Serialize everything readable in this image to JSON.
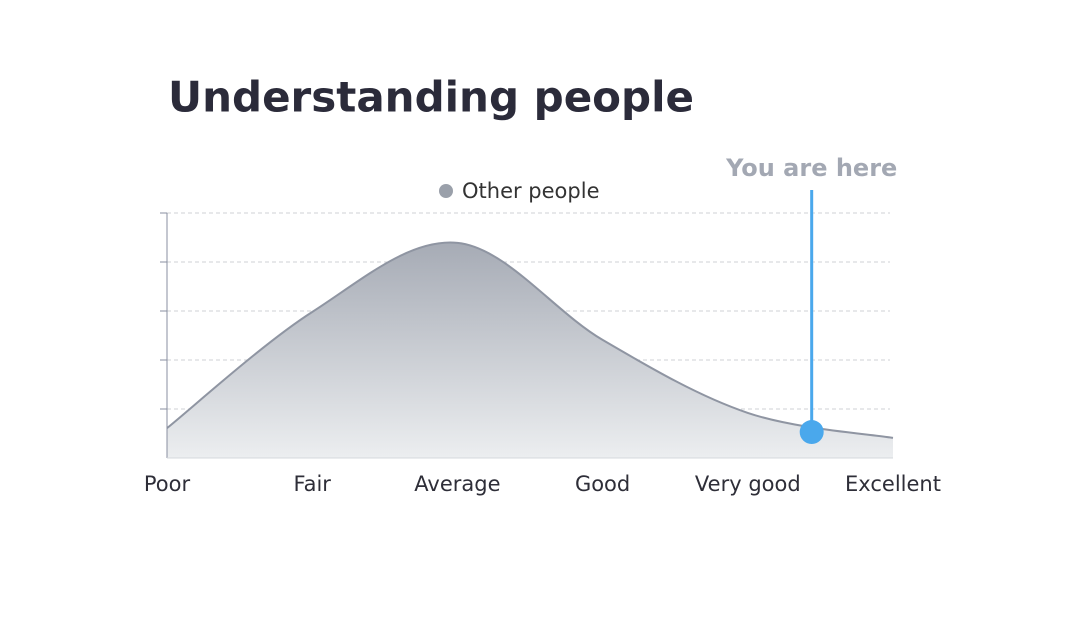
{
  "chart_data": {
    "type": "area",
    "title": "Understanding people",
    "categories": [
      "Poor",
      "Fair",
      "Average",
      "Good",
      "Very good",
      "Excellent"
    ],
    "series": [
      {
        "name": "Other people",
        "color": "#9aa0aa",
        "values": [
          0.61,
          2.98,
          4.39,
          2.41,
          0.92,
          0.41
        ]
      }
    ],
    "ylim": [
      0,
      5
    ],
    "yticks": [
      1,
      2,
      3,
      4,
      5
    ],
    "grid": true,
    "marker": {
      "label": "You are here",
      "position": 4.44,
      "value": 0.53,
      "color": "#4aa8ec"
    }
  }
}
